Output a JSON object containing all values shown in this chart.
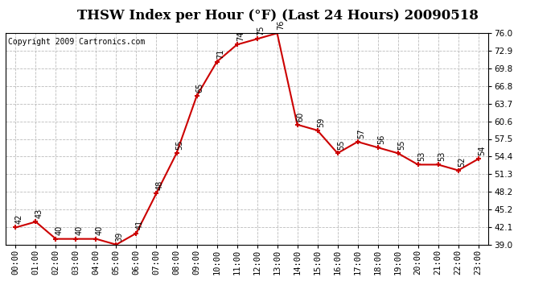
{
  "title": "THSW Index per Hour (°F) (Last 24 Hours) 20090518",
  "copyright": "Copyright 2009 Cartronics.com",
  "hours": [
    "00:00",
    "01:00",
    "02:00",
    "03:00",
    "04:00",
    "05:00",
    "06:00",
    "07:00",
    "08:00",
    "09:00",
    "10:00",
    "11:00",
    "12:00",
    "13:00",
    "14:00",
    "15:00",
    "16:00",
    "17:00",
    "18:00",
    "19:00",
    "20:00",
    "21:00",
    "22:00",
    "23:00"
  ],
  "values": [
    42,
    43,
    40,
    40,
    40,
    39,
    41,
    48,
    55,
    65,
    71,
    74,
    75,
    76,
    60,
    59,
    55,
    57,
    56,
    55,
    53,
    53,
    52,
    54
  ],
  "line_color": "#cc0000",
  "marker_color": "#cc0000",
  "bg_color": "#ffffff",
  "grid_color": "#bbbbbb",
  "ylim_min": 39.0,
  "ylim_max": 76.0,
  "yticks": [
    39.0,
    42.1,
    45.2,
    48.2,
    51.3,
    54.4,
    57.5,
    60.6,
    63.7,
    66.8,
    69.8,
    72.9,
    76.0
  ],
  "title_fontsize": 12,
  "copyright_fontsize": 7,
  "label_fontsize": 7,
  "tick_fontsize": 7.5
}
